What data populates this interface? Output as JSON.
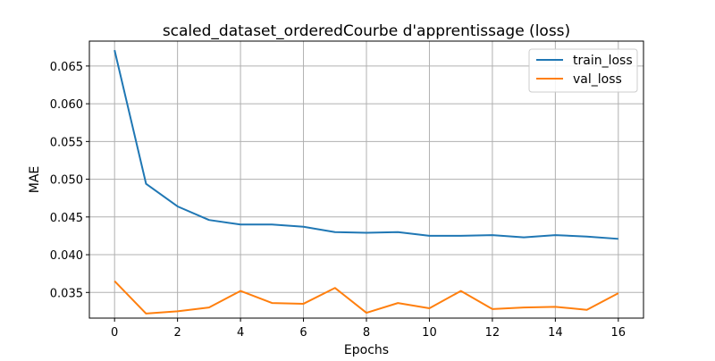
{
  "chart_data": {
    "type": "line",
    "title": "scaled_dataset_orderedCourbe d'apprentissage (loss)",
    "xlabel": "Epochs",
    "ylabel": "MAE",
    "x": [
      0,
      1,
      2,
      3,
      4,
      5,
      6,
      7,
      8,
      9,
      10,
      11,
      12,
      13,
      14,
      15,
      16
    ],
    "xlim": [
      -0.8,
      16.8
    ],
    "ylim": [
      0.0316,
      0.0683
    ],
    "x_ticks": [
      0,
      2,
      4,
      6,
      8,
      10,
      12,
      14,
      16
    ],
    "x_tick_labels": [
      "0",
      "2",
      "4",
      "6",
      "8",
      "10",
      "12",
      "14",
      "16"
    ],
    "y_ticks": [
      0.035,
      0.04,
      0.045,
      0.05,
      0.055,
      0.06,
      0.065
    ],
    "y_tick_labels": [
      "0.035",
      "0.040",
      "0.045",
      "0.050",
      "0.055",
      "0.060",
      "0.065"
    ],
    "grid": true,
    "legend_position": "top-right",
    "series": [
      {
        "name": "train_loss",
        "color": "#1f77b4",
        "values": [
          0.0671,
          0.0494,
          0.0464,
          0.0446,
          0.044,
          0.044,
          0.0437,
          0.043,
          0.0429,
          0.043,
          0.0425,
          0.0425,
          0.0426,
          0.0423,
          0.0426,
          0.0424,
          0.0421
        ]
      },
      {
        "name": "val_loss",
        "color": "#ff7f0e",
        "values": [
          0.0365,
          0.0322,
          0.0325,
          0.033,
          0.0352,
          0.0336,
          0.0335,
          0.0356,
          0.0323,
          0.0336,
          0.0329,
          0.0352,
          0.0328,
          0.033,
          0.0331,
          0.0327,
          0.0349
        ]
      }
    ]
  }
}
